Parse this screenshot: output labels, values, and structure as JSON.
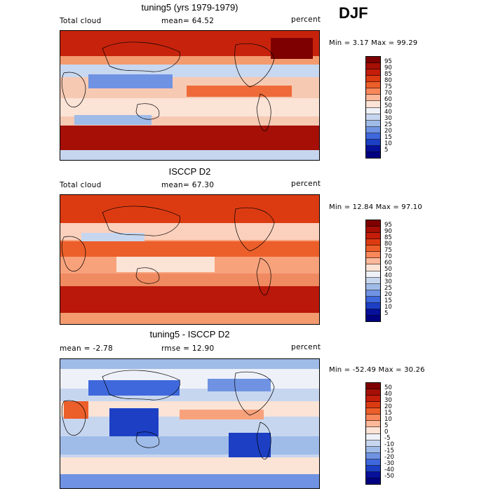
{
  "season": "DJF",
  "panels": [
    {
      "title": "tuning5 (yrs 1979-1979)",
      "left_label": "Total cloud",
      "center_label": "mean=  64.52",
      "right_label": "percent",
      "minmax": "Min =   3.17 Max =  99.29",
      "colorbar_labels": [
        "95",
        "90",
        "85",
        "80",
        "75",
        "70",
        "60",
        "50",
        "40",
        "30",
        "25",
        "20",
        "15",
        "10",
        "5"
      ]
    },
    {
      "title": "ISCCP D2",
      "left_label": "Total cloud",
      "center_label": "mean=  67.30",
      "right_label": "percent",
      "minmax": "Min =  12.84 Max =  97.10",
      "colorbar_labels": [
        "95",
        "90",
        "85",
        "80",
        "75",
        "70",
        "60",
        "50",
        "40",
        "30",
        "25",
        "20",
        "15",
        "10",
        "5"
      ]
    },
    {
      "title": "tuning5 - ISCCP D2",
      "left_label": "mean =   -2.78",
      "center_label": "rmse =  12.90",
      "right_label": "percent",
      "minmax": "Min = -52.49 Max =  30.26",
      "colorbar_labels": [
        "50",
        "40",
        "30",
        "20",
        "15",
        "10",
        "5",
        "0",
        "-5",
        "-10",
        "-15",
        "-20",
        "-30",
        "-40",
        "-50"
      ]
    }
  ],
  "colors": {
    "abs_scale": [
      "#7f0000",
      "#a50f05",
      "#c41d0a",
      "#dc3b12",
      "#ec5f2a",
      "#f8875a",
      "#fbb89a",
      "#fbe3d6",
      "#eef1f8",
      "#c7d6ef",
      "#9fbbe8",
      "#6f93e2",
      "#3f68dc",
      "#1c3fc4",
      "#06109a",
      "#000080"
    ],
    "diff_scale": [
      "#7f0000",
      "#a50f05",
      "#c41d0a",
      "#dc3b12",
      "#ec5f2a",
      "#f8875a",
      "#fbb89a",
      "#fbe3d6",
      "#eef1f8",
      "#c7d6ef",
      "#9fbbe8",
      "#6f93e2",
      "#3f68dc",
      "#1c3fc4",
      "#06109a",
      "#000080"
    ]
  }
}
